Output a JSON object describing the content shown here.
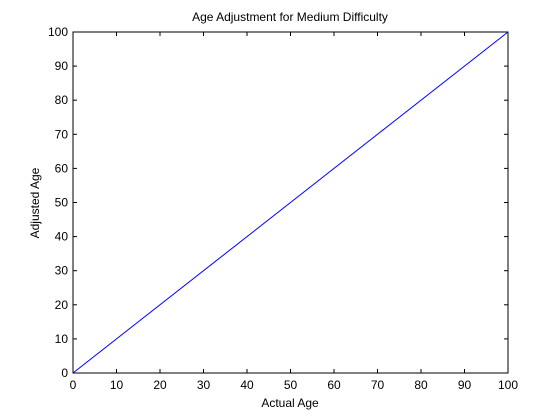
{
  "chart_data": {
    "type": "line",
    "title": "Age Adjustment for Medium Difficulty",
    "xlabel": "Actual Age",
    "ylabel": "Adjusted Age",
    "xlim": [
      0,
      100
    ],
    "ylim": [
      0,
      100
    ],
    "xticks": [
      0,
      10,
      20,
      30,
      40,
      50,
      60,
      70,
      80,
      90,
      100
    ],
    "yticks": [
      0,
      10,
      20,
      30,
      40,
      50,
      60,
      70,
      80,
      90,
      100
    ],
    "grid": false,
    "series": [
      {
        "x": [
          0,
          100
        ],
        "y": [
          0,
          100
        ],
        "color": "#0000ff"
      }
    ]
  }
}
